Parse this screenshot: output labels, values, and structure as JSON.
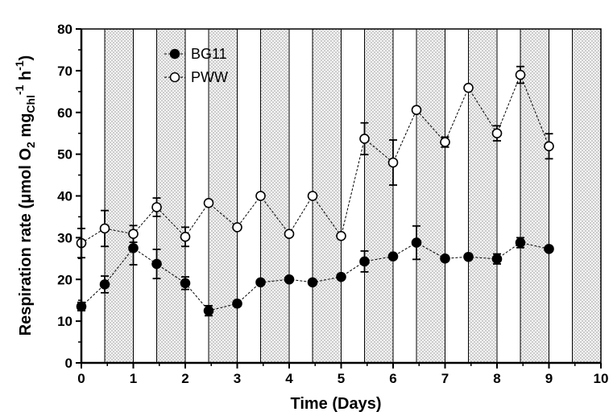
{
  "chart_data": {
    "type": "line",
    "xlabel": "Time (Days)",
    "ylabel": {
      "main": "Respiration rate (",
      "mu": "μ",
      "unit_a": "mol O",
      "sub_2": "2",
      "unit_b": " mg",
      "sub_chl": "Chl",
      "sup_1": "-1",
      "unit_h": " h",
      "sup_1b": "-1",
      "close": ")"
    },
    "xlim": [
      0,
      10
    ],
    "ylim": [
      0,
      80
    ],
    "x_ticks": [
      "0",
      "1",
      "2",
      "3",
      "4",
      "5",
      "6",
      "7",
      "8",
      "9",
      "10"
    ],
    "y_ticks": [
      "0",
      "10",
      "20",
      "30",
      "40",
      "50",
      "60",
      "70",
      "80"
    ],
    "dark_periods": [
      [
        0.45,
        1.0
      ],
      [
        1.45,
        2.0
      ],
      [
        2.45,
        3.0
      ],
      [
        3.45,
        4.0
      ],
      [
        4.45,
        5.0
      ],
      [
        5.45,
        6.0
      ],
      [
        6.45,
        7.0
      ],
      [
        7.45,
        8.0
      ],
      [
        8.45,
        9.0
      ],
      [
        9.45,
        10.0
      ]
    ],
    "legend_position": "top-left",
    "series": [
      {
        "name": "BG11",
        "marker": "filled-circle",
        "color": "#000000",
        "x": [
          0,
          0.45,
          1,
          1.45,
          2,
          2.45,
          3,
          3.45,
          4,
          4.45,
          5,
          5.45,
          6,
          6.45,
          7,
          7.45,
          8,
          8.45,
          9
        ],
        "y": [
          13.5,
          18.8,
          27.5,
          23.7,
          19.1,
          12.5,
          14.2,
          19.3,
          20.0,
          19.3,
          20.6,
          24.3,
          25.5,
          28.8,
          25.0,
          25.4,
          24.9,
          28.8,
          27.3
        ],
        "err": [
          1.0,
          2.0,
          4.0,
          3.5,
          1.5,
          1.2,
          0,
          0,
          0,
          0,
          0,
          2.5,
          0,
          4.0,
          0,
          0,
          1.2,
          1.2,
          0
        ]
      },
      {
        "name": "PWW",
        "marker": "open-circle",
        "color": "#000000",
        "x": [
          0,
          0.45,
          1,
          1.45,
          2,
          2.45,
          3,
          3.45,
          4,
          4.45,
          5,
          5.45,
          6,
          6.45,
          7,
          7.45,
          8,
          8.45,
          9
        ],
        "y": [
          28.7,
          32.2,
          30.9,
          37.3,
          30.2,
          38.3,
          32.5,
          40.0,
          30.9,
          40.0,
          30.4,
          53.7,
          48.0,
          60.6,
          52.9,
          65.9,
          55.0,
          69.0,
          51.9
        ],
        "err": [
          3.5,
          4.3,
          2.0,
          2.2,
          2.3,
          0,
          0,
          0,
          0,
          0,
          0,
          3.8,
          5.4,
          0,
          1.2,
          0,
          1.8,
          2.0,
          3.0
        ]
      }
    ]
  }
}
